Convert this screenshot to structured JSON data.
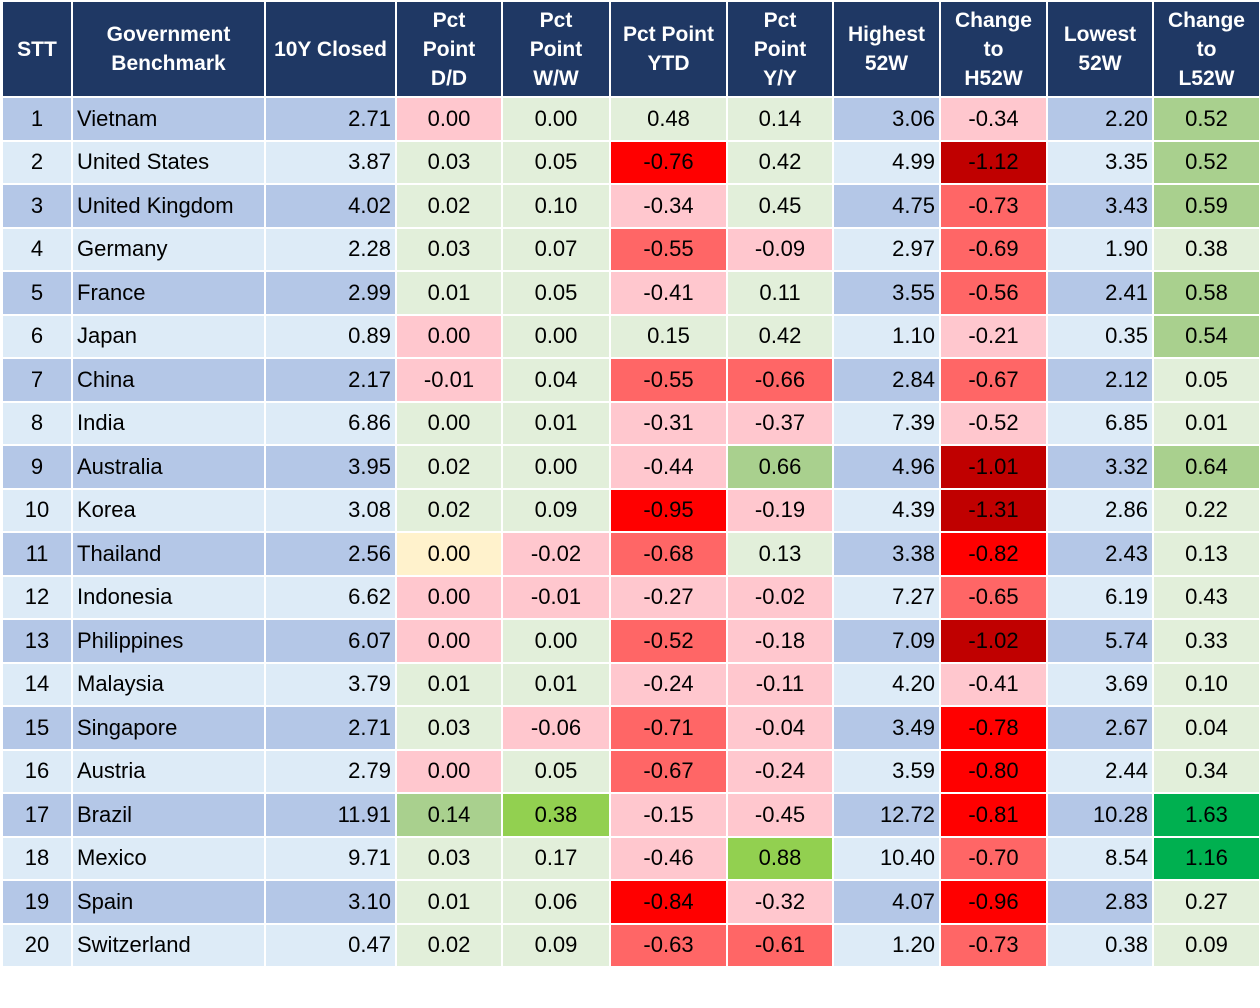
{
  "chart_data": {
    "type": "table",
    "columns": [
      "STT",
      "Government Benchmark",
      "10Y Closed",
      "Pct Point D/D",
      "Pct Point W/W",
      "Pct Point YTD",
      "Pct Point Y/Y",
      "Highest 52W",
      "Change to H52W",
      "Lowest 52W",
      "Change to L52W"
    ],
    "heat_colors": {
      "base_odd": "#b4c7e7",
      "base_even": "#ddebf7",
      "light_green": "#e2efda",
      "mid_green": "#a9d08e",
      "bright_green": "#92d050",
      "dark_green": "#00b050",
      "light_red": "#ffc7ce",
      "mid_red": "#ff6666",
      "bright_red": "#ff0000",
      "dark_red": "#c00000",
      "pale_yellow": "#fff2cc"
    },
    "rows": [
      {
        "stt": "1",
        "name": "Vietnam",
        "closed": "2.71",
        "dd": "0.00",
        "ww": "0.00",
        "ytd": "0.48",
        "yy": "0.14",
        "high": "3.06",
        "chigh": "-0.34",
        "low": "2.20",
        "clow": "0.52",
        "colors": {
          "dd": "light_red",
          "ww": "light_green",
          "ytd": "light_green",
          "yy": "light_green",
          "chigh": "light_red",
          "clow": "mid_green"
        }
      },
      {
        "stt": "2",
        "name": "United States",
        "closed": "3.87",
        "dd": "0.03",
        "ww": "0.05",
        "ytd": "-0.76",
        "yy": "0.42",
        "high": "4.99",
        "chigh": "-1.12",
        "low": "3.35",
        "clow": "0.52",
        "colors": {
          "dd": "light_green",
          "ww": "light_green",
          "ytd": "bright_red",
          "yy": "light_green",
          "chigh": "dark_red",
          "clow": "mid_green"
        }
      },
      {
        "stt": "3",
        "name": "United Kingdom",
        "closed": "4.02",
        "dd": "0.02",
        "ww": "0.10",
        "ytd": "-0.34",
        "yy": "0.45",
        "high": "4.75",
        "chigh": "-0.73",
        "low": "3.43",
        "clow": "0.59",
        "colors": {
          "dd": "light_green",
          "ww": "light_green",
          "ytd": "light_red",
          "yy": "light_green",
          "chigh": "mid_red",
          "clow": "mid_green"
        }
      },
      {
        "stt": "4",
        "name": "Germany",
        "closed": "2.28",
        "dd": "0.03",
        "ww": "0.07",
        "ytd": "-0.55",
        "yy": "-0.09",
        "high": "2.97",
        "chigh": "-0.69",
        "low": "1.90",
        "clow": "0.38",
        "colors": {
          "dd": "light_green",
          "ww": "light_green",
          "ytd": "mid_red",
          "yy": "light_red",
          "chigh": "mid_red",
          "clow": "light_green"
        }
      },
      {
        "stt": "5",
        "name": "France",
        "closed": "2.99",
        "dd": "0.01",
        "ww": "0.05",
        "ytd": "-0.41",
        "yy": "0.11",
        "high": "3.55",
        "chigh": "-0.56",
        "low": "2.41",
        "clow": "0.58",
        "colors": {
          "dd": "light_green",
          "ww": "light_green",
          "ytd": "light_red",
          "yy": "light_green",
          "chigh": "mid_red",
          "clow": "mid_green"
        }
      },
      {
        "stt": "6",
        "name": "Japan",
        "closed": "0.89",
        "dd": "0.00",
        "ww": "0.00",
        "ytd": "0.15",
        "yy": "0.42",
        "high": "1.10",
        "chigh": "-0.21",
        "low": "0.35",
        "clow": "0.54",
        "colors": {
          "dd": "light_red",
          "ww": "light_green",
          "ytd": "light_green",
          "yy": "light_green",
          "chigh": "light_red",
          "clow": "mid_green"
        }
      },
      {
        "stt": "7",
        "name": "China",
        "closed": "2.17",
        "dd": "-0.01",
        "ww": "0.04",
        "ytd": "-0.55",
        "yy": "-0.66",
        "high": "2.84",
        "chigh": "-0.67",
        "low": "2.12",
        "clow": "0.05",
        "colors": {
          "dd": "light_red",
          "ww": "light_green",
          "ytd": "mid_red",
          "yy": "mid_red",
          "chigh": "mid_red",
          "clow": "light_green"
        }
      },
      {
        "stt": "8",
        "name": "India",
        "closed": "6.86",
        "dd": "0.00",
        "ww": "0.01",
        "ytd": "-0.31",
        "yy": "-0.37",
        "high": "7.39",
        "chigh": "-0.52",
        "low": "6.85",
        "clow": "0.01",
        "colors": {
          "dd": "light_green",
          "ww": "light_green",
          "ytd": "light_red",
          "yy": "light_red",
          "chigh": "light_red",
          "clow": "light_green"
        }
      },
      {
        "stt": "9",
        "name": "Australia",
        "closed": "3.95",
        "dd": "0.02",
        "ww": "0.00",
        "ytd": "-0.44",
        "yy": "0.66",
        "high": "4.96",
        "chigh": "-1.01",
        "low": "3.32",
        "clow": "0.64",
        "colors": {
          "dd": "light_green",
          "ww": "light_green",
          "ytd": "light_red",
          "yy": "mid_green",
          "chigh": "dark_red",
          "clow": "mid_green"
        }
      },
      {
        "stt": "10",
        "name": "Korea",
        "closed": "3.08",
        "dd": "0.02",
        "ww": "0.09",
        "ytd": "-0.95",
        "yy": "-0.19",
        "high": "4.39",
        "chigh": "-1.31",
        "low": "2.86",
        "clow": "0.22",
        "colors": {
          "dd": "light_green",
          "ww": "light_green",
          "ytd": "bright_red",
          "yy": "light_red",
          "chigh": "dark_red",
          "clow": "light_green"
        }
      },
      {
        "stt": "11",
        "name": "Thailand",
        "closed": "2.56",
        "dd": "0.00",
        "ww": "-0.02",
        "ytd": "-0.68",
        "yy": "0.13",
        "high": "3.38",
        "chigh": "-0.82",
        "low": "2.43",
        "clow": "0.13",
        "colors": {
          "dd": "pale_yellow",
          "ww": "light_red",
          "ytd": "mid_red",
          "yy": "light_green",
          "chigh": "bright_red",
          "clow": "light_green"
        }
      },
      {
        "stt": "12",
        "name": "Indonesia",
        "closed": "6.62",
        "dd": "0.00",
        "ww": "-0.01",
        "ytd": "-0.27",
        "yy": "-0.02",
        "high": "7.27",
        "chigh": "-0.65",
        "low": "6.19",
        "clow": "0.43",
        "colors": {
          "dd": "light_red",
          "ww": "light_red",
          "ytd": "light_red",
          "yy": "light_red",
          "chigh": "mid_red",
          "clow": "light_green"
        }
      },
      {
        "stt": "13",
        "name": "Philippines",
        "closed": "6.07",
        "dd": "0.00",
        "ww": "0.00",
        "ytd": "-0.52",
        "yy": "-0.18",
        "high": "7.09",
        "chigh": "-1.02",
        "low": "5.74",
        "clow": "0.33",
        "colors": {
          "dd": "light_red",
          "ww": "light_green",
          "ytd": "mid_red",
          "yy": "light_red",
          "chigh": "dark_red",
          "clow": "light_green"
        }
      },
      {
        "stt": "14",
        "name": "Malaysia",
        "closed": "3.79",
        "dd": "0.01",
        "ww": "0.01",
        "ytd": "-0.24",
        "yy": "-0.11",
        "high": "4.20",
        "chigh": "-0.41",
        "low": "3.69",
        "clow": "0.10",
        "colors": {
          "dd": "light_green",
          "ww": "light_green",
          "ytd": "light_red",
          "yy": "light_red",
          "chigh": "light_red",
          "clow": "light_green"
        }
      },
      {
        "stt": "15",
        "name": "Singapore",
        "closed": "2.71",
        "dd": "0.03",
        "ww": "-0.06",
        "ytd": "-0.71",
        "yy": "-0.04",
        "high": "3.49",
        "chigh": "-0.78",
        "low": "2.67",
        "clow": "0.04",
        "colors": {
          "dd": "light_green",
          "ww": "light_red",
          "ytd": "mid_red",
          "yy": "light_red",
          "chigh": "bright_red",
          "clow": "light_green"
        }
      },
      {
        "stt": "16",
        "name": "Austria",
        "closed": "2.79",
        "dd": "0.00",
        "ww": "0.05",
        "ytd": "-0.67",
        "yy": "-0.24",
        "high": "3.59",
        "chigh": "-0.80",
        "low": "2.44",
        "clow": "0.34",
        "colors": {
          "dd": "light_red",
          "ww": "light_green",
          "ytd": "mid_red",
          "yy": "light_red",
          "chigh": "bright_red",
          "clow": "light_green"
        }
      },
      {
        "stt": "17",
        "name": "Brazil",
        "closed": "11.91",
        "dd": "0.14",
        "ww": "0.38",
        "ytd": "-0.15",
        "yy": "-0.45",
        "high": "12.72",
        "chigh": "-0.81",
        "low": "10.28",
        "clow": "1.63",
        "colors": {
          "dd": "mid_green",
          "ww": "bright_green",
          "ytd": "light_red",
          "yy": "light_red",
          "chigh": "bright_red",
          "clow": "dark_green"
        }
      },
      {
        "stt": "18",
        "name": "Mexico",
        "closed": "9.71",
        "dd": "0.03",
        "ww": "0.17",
        "ytd": "-0.46",
        "yy": "0.88",
        "high": "10.40",
        "chigh": "-0.70",
        "low": "8.54",
        "clow": "1.16",
        "colors": {
          "dd": "light_green",
          "ww": "light_green",
          "ytd": "light_red",
          "yy": "bright_green",
          "chigh": "mid_red",
          "clow": "dark_green"
        }
      },
      {
        "stt": "19",
        "name": "Spain",
        "closed": "3.10",
        "dd": "0.01",
        "ww": "0.06",
        "ytd": "-0.84",
        "yy": "-0.32",
        "high": "4.07",
        "chigh": "-0.96",
        "low": "2.83",
        "clow": "0.27",
        "colors": {
          "dd": "light_green",
          "ww": "light_green",
          "ytd": "bright_red",
          "yy": "light_red",
          "chigh": "bright_red",
          "clow": "light_green"
        }
      },
      {
        "stt": "20",
        "name": "Switzerland",
        "closed": "0.47",
        "dd": "0.02",
        "ww": "0.09",
        "ytd": "-0.63",
        "yy": "-0.61",
        "high": "1.20",
        "chigh": "-0.73",
        "low": "0.38",
        "clow": "0.09",
        "colors": {
          "dd": "light_green",
          "ww": "light_green",
          "ytd": "mid_red",
          "yy": "mid_red",
          "chigh": "mid_red",
          "clow": "light_green"
        }
      }
    ]
  },
  "header": {
    "stt": "STT",
    "benchmark_1": "Government",
    "benchmark_2": "Benchmark",
    "closed": "10Y Closed",
    "dd_1": "Pct",
    "dd_2": "Point",
    "dd_3": "D/D",
    "ww_1": "Pct",
    "ww_2": "Point",
    "ww_3": "W/W",
    "ytd": "Pct Point YTD",
    "yy_1": "Pct",
    "yy_2": "Point",
    "yy_3": "Y/Y",
    "high_1": "Highest",
    "high_2": "52W",
    "chigh_1": "Change",
    "chigh_2": "to",
    "chigh_3": "H52W",
    "low_1": "Lowest",
    "low_2": "52W",
    "clow_1": "Change",
    "clow_2": "to",
    "clow_3": "L52W"
  }
}
